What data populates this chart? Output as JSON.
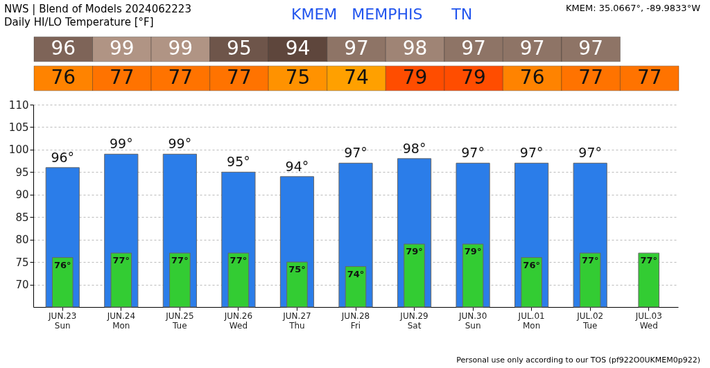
{
  "chart_data": [
    {
      "type": "heatmap",
      "title": "NWS | Blend of Models 2024062223",
      "subtitle": "Daily HI/LO Temperature [°F]",
      "annotations": [
        "KMEM   MEMPHIS      TN",
        "KMEM: 35.0667°, -89.9833°W"
      ],
      "categories": [
        null,
        null,
        null,
        null,
        null,
        null,
        null,
        null,
        null,
        null,
        null
      ],
      "y_categories": [
        null,
        null
      ],
      "cells": [
        [
          96,
          99,
          99,
          95,
          94,
          97,
          98,
          97,
          97,
          97,
          null
        ],
        [
          76,
          77,
          77,
          77,
          75,
          74,
          79,
          79,
          76,
          77,
          77
        ]
      ],
      "cell_labels": [
        [
          "96",
          "99",
          "99",
          "95",
          "94",
          "97",
          "98",
          "97",
          "97",
          "97",
          null
        ],
        [
          "76",
          "77",
          "77",
          "77",
          "75",
          "74",
          "79",
          "79",
          "76",
          "77",
          "77"
        ]
      ]
    },
    {
      "type": "bar",
      "annotations": [
        "Personal use only according to our TOS (pf922O0UKMEM0p922)"
      ],
      "categories": [
        "JUN.23\nSun",
        "JUN.24\nMon",
        "JUN.25\nTue",
        "JUN.26\nWed",
        "JUN.27\nThu",
        "JUN.28\nFri",
        "JUN.29\nSat",
        "JUN.30\nSun",
        "JUL.01\nMon",
        "JUL.02\nTue",
        "JUL.03\nWed"
      ],
      "series": [
        {
          "color": "#2b7de9",
          "values": [
            96,
            99,
            99,
            95,
            94,
            97,
            98,
            97,
            97,
            97,
            null
          ],
          "value_labels": [
            "96°",
            "99°",
            "99°",
            "95°",
            "94°",
            "97°",
            "98°",
            "97°",
            "97°",
            "97°",
            null
          ]
        },
        {
          "color": "#33cc33",
          "values": [
            76,
            77,
            77,
            77,
            75,
            74,
            79,
            79,
            76,
            77,
            77
          ],
          "value_labels": [
            "76°",
            "77°",
            "77°",
            "77°",
            "75°",
            "74°",
            "79°",
            "79°",
            "76°",
            "77°",
            "77°"
          ]
        }
      ],
      "ylim": [
        65,
        110
      ],
      "yticks": [
        70,
        75,
        80,
        85,
        90,
        95,
        100,
        105,
        110
      ],
      "grid": "y"
    }
  ]
}
